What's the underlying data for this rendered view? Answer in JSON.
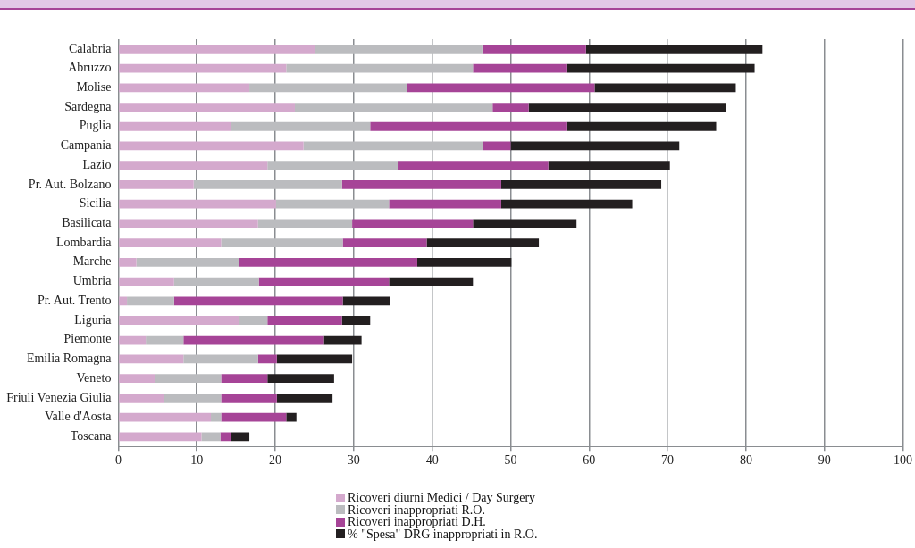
{
  "chart_data": {
    "type": "bar",
    "orientation": "horizontal",
    "stacked": true,
    "categories": [
      "Calabria",
      "Abruzzo",
      "Molise",
      "Sardegna",
      "Puglia",
      "Campania",
      "Lazio",
      "Pr. Aut. Bolzano",
      "Sicilia",
      "Basilicata",
      "Lombardia",
      "Marche",
      "Umbria",
      "Pr. Aut. Trento",
      "Liguria",
      "Piemonte",
      "Emilia Romagna",
      "Veneto",
      "Friuli Venezia Giulia",
      "Valle d'Aosta",
      "Toscana"
    ],
    "series": [
      {
        "name": "Ricoveri diurni Medici / Day Surgery",
        "color": "#d4a9cd",
        "values": [
          25.1,
          21.4,
          16.7,
          22.5,
          14.4,
          23.6,
          19.0,
          9.6,
          20.1,
          17.8,
          13.1,
          2.3,
          7.1,
          1.1,
          15.4,
          3.5,
          8.3,
          4.7,
          5.8,
          11.8,
          10.6
        ]
      },
      {
        "name": "Ricoveri inappropriati R.O.",
        "color": "#bbbcbf",
        "values": [
          21.3,
          23.8,
          20.1,
          25.2,
          17.7,
          22.9,
          16.6,
          18.9,
          14.4,
          12.0,
          15.5,
          13.1,
          10.8,
          6.0,
          3.6,
          4.8,
          9.5,
          8.4,
          7.3,
          1.3,
          2.4
        ]
      },
      {
        "name": "Ricoveri inappropriati D.H.",
        "color": "#a64497",
        "values": [
          13.2,
          11.9,
          23.9,
          4.6,
          25.0,
          3.5,
          19.2,
          20.3,
          14.3,
          15.4,
          10.7,
          22.7,
          16.6,
          21.5,
          9.5,
          17.9,
          2.4,
          5.9,
          7.1,
          8.3,
          1.3
        ]
      },
      {
        "name": "% \"Spesa\" DRG inappropriati in R.O.",
        "color": "#231f20",
        "values": [
          22.5,
          24.0,
          18.0,
          25.2,
          19.1,
          21.5,
          15.5,
          20.4,
          16.7,
          13.2,
          14.3,
          12.0,
          10.7,
          6.0,
          3.6,
          4.8,
          9.6,
          8.5,
          7.1,
          1.3,
          2.4
        ]
      }
    ],
    "xlim": [
      0,
      100
    ],
    "xticks": [
      0,
      10,
      20,
      30,
      40,
      50,
      60,
      70,
      80,
      90,
      100
    ],
    "grid": "x",
    "legend": "bottom"
  }
}
